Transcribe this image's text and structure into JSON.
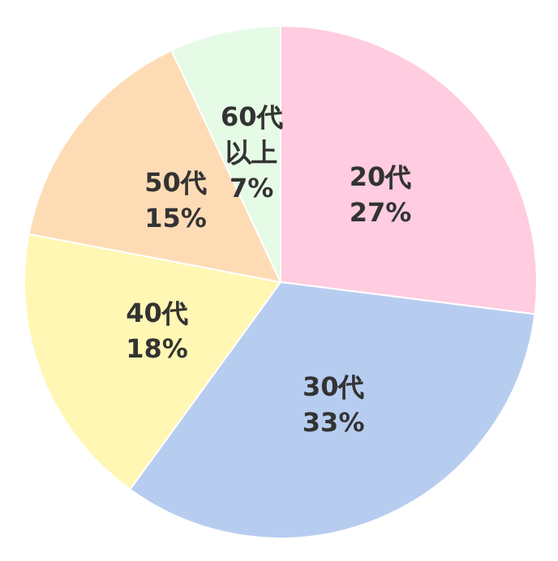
{
  "chart_data": {
    "type": "pie",
    "categories": [
      "20代",
      "30代",
      "40代",
      "50代",
      "60代以上"
    ],
    "values": [
      27,
      33,
      18,
      15,
      7
    ],
    "colors": [
      "#ffcce0",
      "#b7cdf0",
      "#fff7b3",
      "#fddcb5",
      "#e6fbe6"
    ],
    "value_labels": [
      "27%",
      "33%",
      "18%",
      "15%",
      "7%"
    ],
    "legend": false
  }
}
